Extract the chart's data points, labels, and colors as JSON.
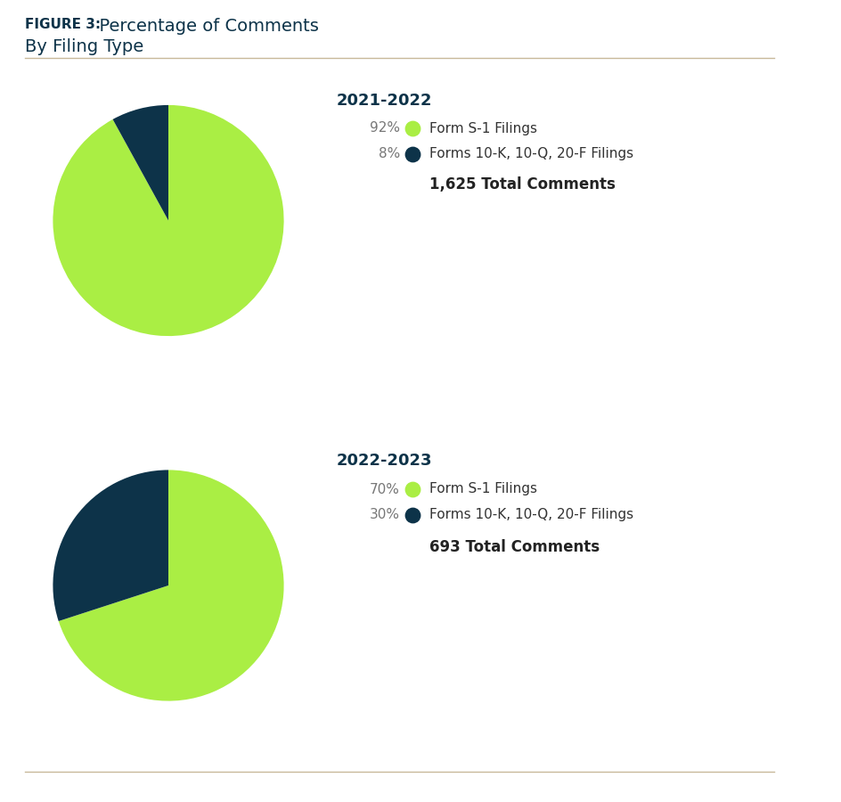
{
  "figure_label": "FIGURE 3:",
  "figure_title": "  Percentage of Comments",
  "figure_subtitle": "By Filing Type",
  "title_color": "#0d3349",
  "separator_color": "#c8b99a",
  "background_color": "#ffffff",
  "charts": [
    {
      "period": "2021-2022",
      "slices": [
        92,
        8
      ],
      "colors": [
        "#aaee44",
        "#0d3349"
      ],
      "labels": [
        "Form S-1 Filings",
        "Forms 10-K, 10-Q, 20-F Filings"
      ],
      "percentages": [
        "92%",
        "8%"
      ],
      "total_label": "1,625 Total Comments",
      "start_angle": 90
    },
    {
      "period": "2022-2023",
      "slices": [
        70,
        30
      ],
      "colors": [
        "#aaee44",
        "#0d3349"
      ],
      "labels": [
        "Form S-1 Filings",
        "Forms 10-K, 10-Q, 20-F Filings"
      ],
      "percentages": [
        "70%",
        "30%"
      ],
      "total_label": "693 Total Comments",
      "start_angle": 90
    }
  ]
}
